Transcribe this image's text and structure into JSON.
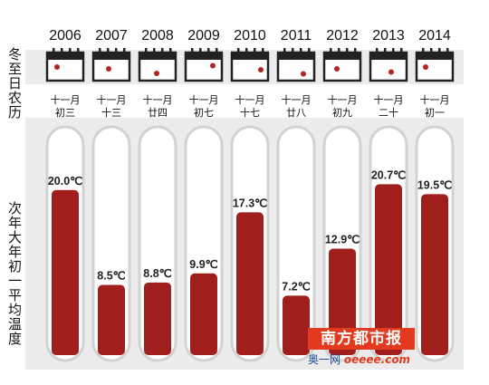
{
  "chart_data": {
    "type": "bar",
    "categories": [
      "2006",
      "2007",
      "2008",
      "2009",
      "2010",
      "2011",
      "2012",
      "2013",
      "2014"
    ],
    "lunar_dates": [
      [
        "十一月",
        "初三"
      ],
      [
        "十一月",
        "十三"
      ],
      [
        "十一月",
        "廿四"
      ],
      [
        "十一月",
        "初七"
      ],
      [
        "十一月",
        "十七"
      ],
      [
        "十一月",
        "廿八"
      ],
      [
        "十一月",
        "初九"
      ],
      [
        "十一月",
        "二十"
      ],
      [
        "十一月",
        "初一"
      ]
    ],
    "values": [
      20.0,
      8.5,
      8.8,
      9.9,
      17.3,
      7.2,
      12.9,
      20.7,
      19.5
    ],
    "value_labels": [
      "20.0℃",
      "8.5℃",
      "8.8℃",
      "9.9℃",
      "17.3℃",
      "7.2℃",
      "12.9℃",
      "20.7℃",
      "19.5℃"
    ],
    "unit": "℃",
    "ylim": [
      0,
      27
    ],
    "row_label_solar_term": "冬至日农历",
    "row_label_temperature": "次年大年初一平均温度",
    "colors": {
      "bar_fill": "#a01f1c",
      "tube_fill": "#ffffff",
      "tube_outline": "#d2d2d2",
      "panel_bg": "#ececec",
      "calendar_outline": "#222222",
      "calendar_dot": "#b52323"
    }
  },
  "watermark": {
    "name": "南方都市报",
    "site_prefix": "奥一网",
    "site_domain": "oeeee.com"
  }
}
